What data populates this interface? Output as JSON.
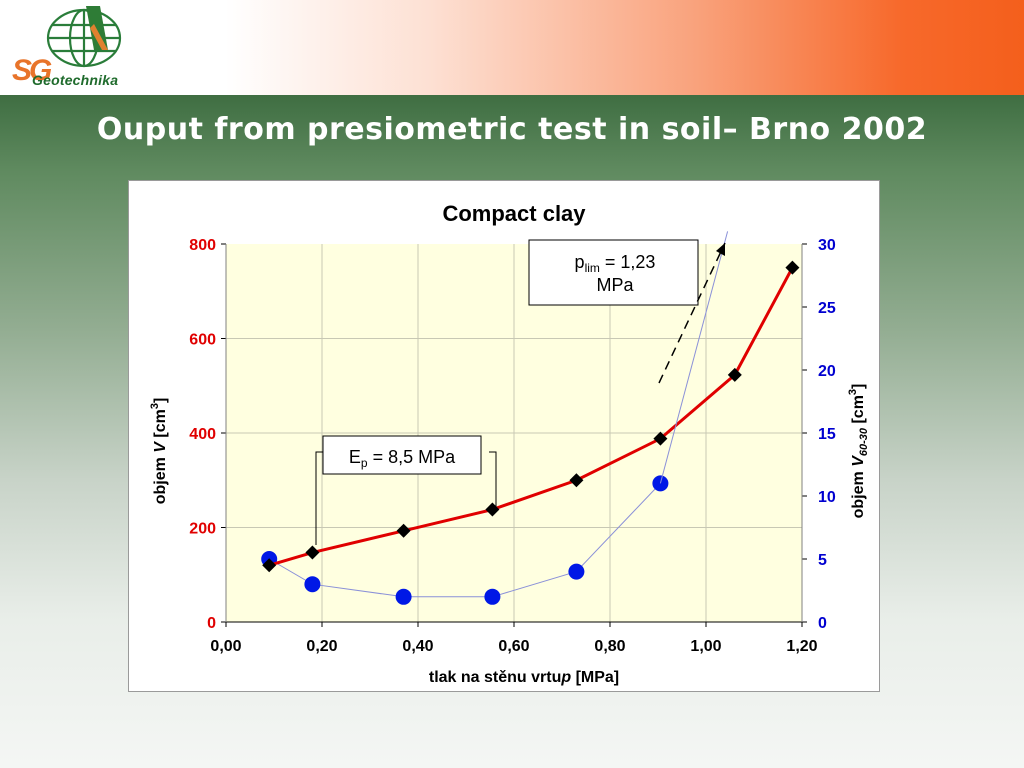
{
  "header": {
    "brand": "Geotechnika",
    "brand_initials": "SG",
    "title": "Ouput from presiometric test in soil– Brno 2002"
  },
  "colors": {
    "left_axis": "#e00000",
    "right_axis": "#0000d0",
    "series_v": "#e00000",
    "series_v6030": "#0018e6",
    "plot_bg": "#ffffe0"
  },
  "chart_data": {
    "type": "line",
    "title": "Compact clay",
    "xlabel": "tlak na stěnu vrtu p [MPa]",
    "xlabel_parts": {
      "prefix": "tlak na stěnu vrtu",
      "italic": "p",
      "suffix": "[MPa]"
    },
    "ylabel_left": "objem V [cm3]",
    "ylabel_left_parts": {
      "prefix": "objem",
      "italic": "V",
      "unit": "[cm",
      "sup": "3",
      "close": "]"
    },
    "ylabel_right": "objem V60-30 [cm3]",
    "ylabel_right_parts": {
      "prefix": "objem",
      "italic": "V",
      "sub": "60-30",
      "unit": "[cm",
      "sup": "3",
      "close": "]"
    },
    "xlim": [
      0,
      1.2
    ],
    "ylim_left": [
      0,
      800
    ],
    "ylim_right": [
      0,
      30
    ],
    "x_ticks": [
      "0,00",
      "0,20",
      "0,40",
      "0,60",
      "0,80",
      "1,00",
      "1,20"
    ],
    "y_left_ticks": [
      "0",
      "200",
      "400",
      "600",
      "800"
    ],
    "y_right_ticks": [
      "0",
      "5",
      "10",
      "15",
      "20",
      "25",
      "30"
    ],
    "grid": true,
    "series": [
      {
        "axis": "left",
        "marker": "diamond",
        "x": [
          0.09,
          0.18,
          0.37,
          0.555,
          0.73,
          0.905,
          1.06,
          1.18
        ],
        "y": [
          120,
          147,
          193,
          238,
          300,
          388,
          523,
          750
        ]
      },
      {
        "axis": "right",
        "marker": "circle",
        "x": [
          0.09,
          0.18,
          0.37,
          0.555,
          0.73,
          0.905
        ],
        "y": [
          5,
          3,
          2,
          2,
          4,
          11
        ]
      }
    ],
    "trend_line": {
      "axis": "right",
      "x": [
        0.905,
        1.045
      ],
      "y": [
        11,
        31
      ]
    },
    "annotations": {
      "plim": {
        "main": "p",
        "sub": "lim",
        "value": " = 1,23",
        "line2": "MPa"
      },
      "ep": {
        "main": "E",
        "sub": "p",
        "value": " = 8,5 MPa"
      }
    }
  }
}
